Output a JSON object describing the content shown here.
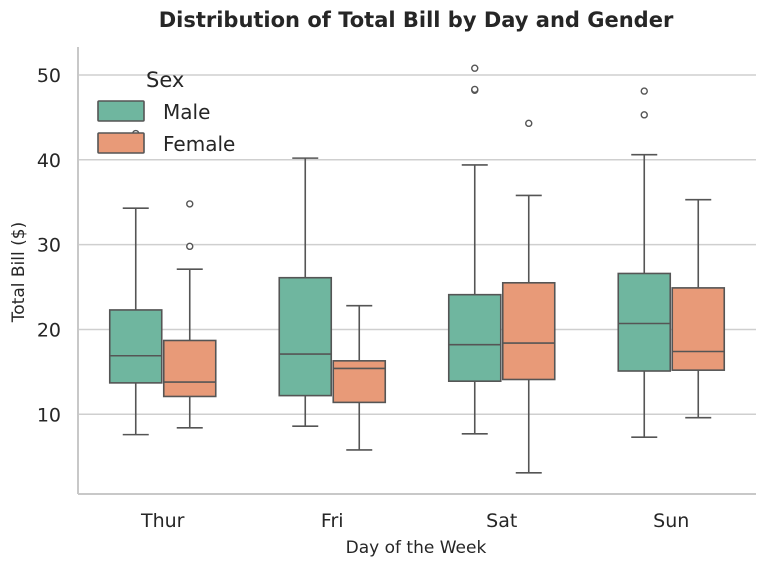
{
  "colors": {
    "male": "#6fb69f",
    "female": "#e89a78",
    "stroke": "#555555",
    "grid": "#cfcfcf",
    "axis": "#c8c8c8",
    "text": "#262626"
  },
  "chart_data": {
    "type": "box",
    "title": "Distribution of Total Bill by Day and Gender",
    "xlabel": "Day of the Week",
    "ylabel": "Total Bill ($)",
    "categories": [
      "Thur",
      "Fri",
      "Sat",
      "Sun"
    ],
    "ylim": [
      0.6,
      53.3
    ],
    "yticks": [
      10,
      20,
      30,
      40,
      50
    ],
    "grid": true,
    "legend": {
      "title": "Sex",
      "position": "upper-left",
      "entries": [
        "Male",
        "Female"
      ]
    },
    "series": [
      {
        "name": "Male",
        "boxes": [
          {
            "category": "Thur",
            "whisker_low": 7.6,
            "q1": 13.7,
            "median": 16.9,
            "q3": 22.3,
            "whisker_high": 34.3,
            "outliers": [
              41.2,
              43.1
            ]
          },
          {
            "category": "Fri",
            "whisker_low": 8.6,
            "q1": 12.2,
            "median": 17.1,
            "q3": 26.1,
            "whisker_high": 40.2,
            "outliers": []
          },
          {
            "category": "Sat",
            "whisker_low": 7.7,
            "q1": 13.9,
            "median": 18.2,
            "q3": 24.1,
            "whisker_high": 39.4,
            "outliers": [
              48.2,
              48.3,
              50.8
            ]
          },
          {
            "category": "Sun",
            "whisker_low": 7.3,
            "q1": 15.1,
            "median": 20.7,
            "q3": 26.6,
            "whisker_high": 40.6,
            "outliers": [
              45.3,
              48.1
            ]
          }
        ]
      },
      {
        "name": "Female",
        "boxes": [
          {
            "category": "Thur",
            "whisker_low": 8.4,
            "q1": 12.1,
            "median": 13.8,
            "q3": 18.7,
            "whisker_high": 27.1,
            "outliers": [
              29.8,
              34.8
            ]
          },
          {
            "category": "Fri",
            "whisker_low": 5.8,
            "q1": 11.4,
            "median": 15.4,
            "q3": 16.3,
            "whisker_high": 22.8,
            "outliers": []
          },
          {
            "category": "Sat",
            "whisker_low": 3.1,
            "q1": 14.1,
            "median": 18.4,
            "q3": 25.5,
            "whisker_high": 35.8,
            "outliers": [
              44.3
            ]
          },
          {
            "category": "Sun",
            "whisker_low": 9.6,
            "q1": 15.2,
            "median": 17.4,
            "q3": 24.9,
            "whisker_high": 35.3,
            "outliers": []
          }
        ]
      }
    ]
  }
}
